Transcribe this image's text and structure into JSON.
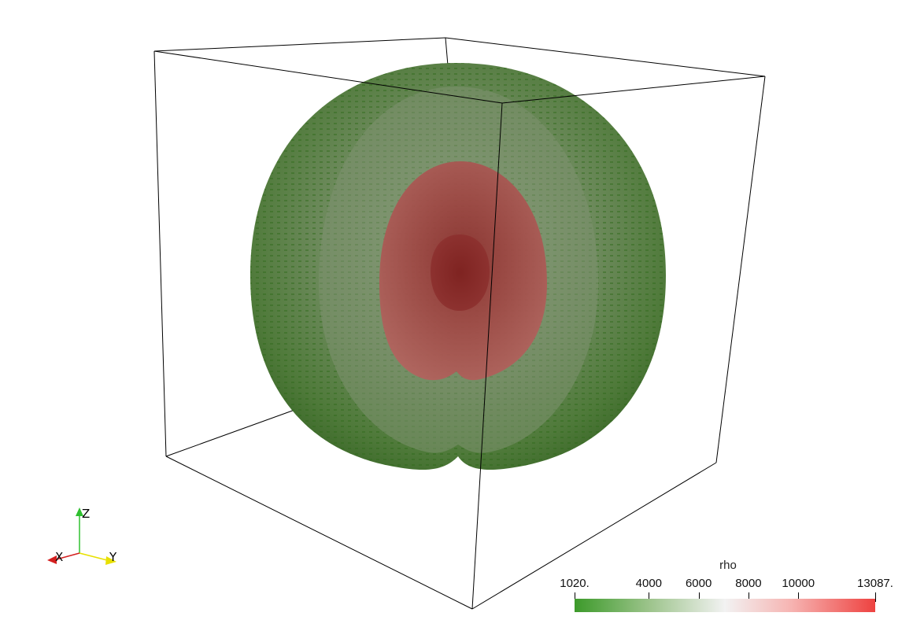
{
  "scalar_bar": {
    "title": "rho",
    "min_label": "1020.",
    "max_label": "13087.",
    "min": 1020,
    "max": 13087,
    "ticks": [
      {
        "value": 1020,
        "label": "1020."
      },
      {
        "value": 4000,
        "label": "4000"
      },
      {
        "value": 6000,
        "label": "6000"
      },
      {
        "value": 8000,
        "label": "8000"
      },
      {
        "value": 10000,
        "label": "10000"
      },
      {
        "value": 13087,
        "label": "13087."
      }
    ],
    "colors": {
      "low": "#3c9a2a",
      "mid": "#f2f2f2",
      "high": "#ee4240"
    }
  },
  "orientation_axes": {
    "x_label": "X",
    "y_label": "Y",
    "z_label": "Z",
    "x_color": "#d42020",
    "y_color": "#e8e000",
    "z_color": "#30c030"
  },
  "scene": {
    "outer_shell_color": "#4a7a34",
    "inner_core_color": "#a33c38",
    "center_core_color": "#8a2a28",
    "bounding_box_color": "#000000"
  }
}
